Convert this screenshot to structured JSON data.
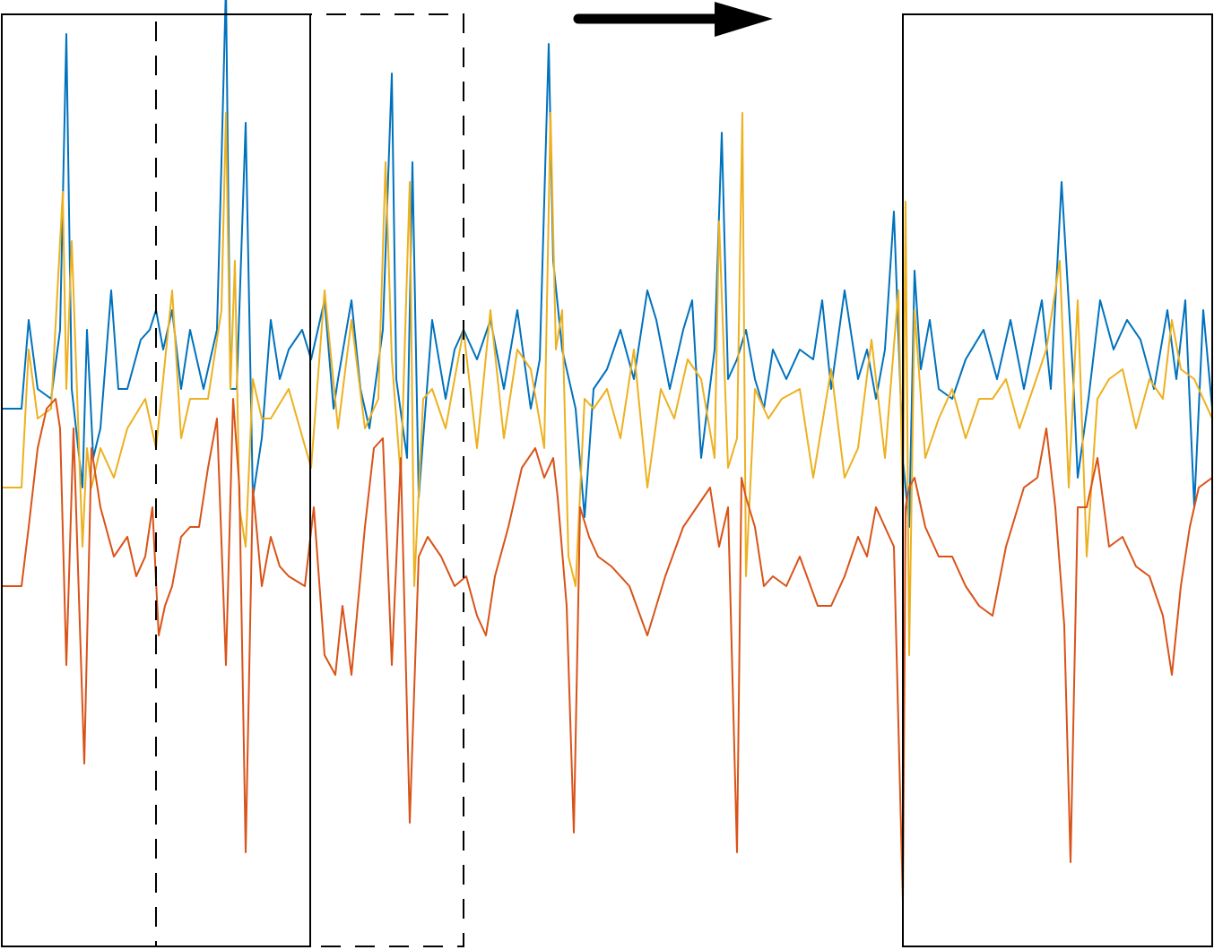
{
  "chart_data": {
    "type": "line",
    "title": "",
    "xlabel": "",
    "ylabel": "",
    "grid": false,
    "legend": "none",
    "annotations": {
      "arrow_direction": "right",
      "windows": [
        {
          "style": "solid",
          "x_range": [
            0,
            344
          ]
        },
        {
          "style": "dashed",
          "x_range": [
            172,
            515
          ]
        },
        {
          "style": "solid",
          "x_range": [
            1005,
            1350
          ]
        }
      ]
    },
    "series": [
      {
        "color": "#0072BD",
        "x": [
          0,
          22,
          30,
          40,
          55,
          65,
          72,
          78,
          90,
          95,
          102,
          110,
          122,
          130,
          140,
          155,
          165,
          172,
          180,
          190,
          200,
          210,
          225,
          240,
          245,
          250,
          255,
          262,
          272,
          280,
          290,
          300,
          310,
          320,
          335,
          345,
          360,
          370,
          375,
          390,
          400,
          410,
          425,
          435,
          440,
          452,
          458,
          465,
          480,
          495,
          505,
          515,
          530,
          545,
          560,
          575,
          590,
          600,
          610,
          615,
          625,
          640,
          650,
          660,
          675,
          690,
          705,
          720,
          730,
          745,
          760,
          770,
          780,
          795,
          803,
          810,
          820,
          830,
          840,
          850,
          860,
          875,
          890,
          905,
          915,
          925,
          940,
          955,
          965,
          975,
          985,
          995,
          1005,
          1012,
          1018,
          1025,
          1035,
          1045,
          1060,
          1075,
          1095,
          1110,
          1125,
          1140,
          1160,
          1170,
          1182,
          1195,
          1200,
          1212,
          1225,
          1240,
          1255,
          1270,
          1285,
          1300,
          1310,
          1320,
          1330,
          1340,
          1350
        ],
        "y": [
          0.0,
          0.0,
          0.9,
          0.2,
          0.1,
          0.8,
          3.8,
          0.2,
          -0.8,
          0.8,
          -0.5,
          -0.2,
          1.2,
          0.2,
          0.2,
          0.7,
          0.8,
          1.0,
          0.6,
          1.0,
          0.2,
          0.8,
          0.2,
          0.8,
          2.5,
          4.3,
          0.2,
          0.2,
          2.9,
          -0.9,
          -0.3,
          0.9,
          0.3,
          0.6,
          0.8,
          0.5,
          1.1,
          0.0,
          0.3,
          1.1,
          0.2,
          -0.2,
          0.8,
          3.4,
          0.3,
          -0.5,
          2.5,
          -0.9,
          0.9,
          0.1,
          0.6,
          0.8,
          0.5,
          0.9,
          0.2,
          1.0,
          0.0,
          0.5,
          3.7,
          1.5,
          0.6,
          0.0,
          -1.1,
          0.2,
          0.4,
          0.8,
          0.3,
          1.2,
          0.9,
          0.2,
          0.8,
          1.1,
          -0.5,
          0.6,
          2.8,
          0.3,
          0.5,
          0.8,
          0.3,
          0.0,
          0.6,
          0.3,
          0.6,
          0.5,
          1.1,
          0.2,
          1.2,
          0.3,
          0.6,
          0.1,
          0.6,
          2.0,
          -0.5,
          -1.2,
          1.4,
          0.4,
          0.9,
          0.2,
          0.1,
          0.5,
          0.8,
          0.3,
          0.9,
          0.2,
          1.1,
          0.2,
          2.3,
          0.3,
          -0.7,
          0.1,
          1.1,
          0.6,
          0.9,
          0.7,
          0.2,
          1.0,
          0.3,
          1.1,
          -1.0,
          1.0,
          0.0
        ]
      },
      {
        "color": "#EDB120",
        "x": [
          0,
          22,
          30,
          40,
          55,
          68,
          72,
          78,
          90,
          95,
          100,
          110,
          125,
          140,
          160,
          172,
          180,
          190,
          200,
          210,
          230,
          245,
          250,
          255,
          260,
          265,
          272,
          280,
          290,
          300,
          320,
          345,
          360,
          375,
          390,
          405,
          420,
          428,
          435,
          445,
          455,
          460,
          470,
          480,
          495,
          505,
          515,
          530,
          545,
          560,
          575,
          590,
          605,
          612,
          618,
          625,
          632,
          640,
          650,
          660,
          675,
          690,
          705,
          720,
          735,
          750,
          765,
          780,
          795,
          800,
          810,
          820,
          826,
          830,
          840,
          855,
          870,
          890,
          905,
          925,
          940,
          955,
          970,
          985,
          1000,
          1005,
          1008,
          1012,
          1018,
          1030,
          1045,
          1060,
          1075,
          1090,
          1105,
          1120,
          1135,
          1150,
          1165,
          1180,
          1190,
          1200,
          1210,
          1222,
          1235,
          1250,
          1265,
          1280,
          1295,
          1305,
          1315,
          1330,
          1350
        ],
        "y": [
          -0.8,
          -0.8,
          0.6,
          -0.1,
          0.0,
          2.2,
          0.2,
          1.7,
          -1.4,
          -0.4,
          -0.8,
          -0.4,
          -0.7,
          -0.2,
          0.1,
          -0.4,
          0.3,
          1.2,
          -0.3,
          0.1,
          0.1,
          1.0,
          3.0,
          0.2,
          1.5,
          -1.0,
          -1.4,
          0.3,
          -0.1,
          -0.1,
          0.2,
          -0.6,
          1.2,
          -0.2,
          0.9,
          -0.2,
          0.1,
          2.5,
          0.5,
          -0.7,
          2.3,
          -1.8,
          0.1,
          0.2,
          -0.2,
          0.3,
          0.8,
          -0.4,
          1.0,
          -0.3,
          0.6,
          0.4,
          -0.4,
          3.0,
          0.6,
          1.0,
          -1.5,
          -1.8,
          0.1,
          0.0,
          0.2,
          -0.3,
          0.6,
          -0.8,
          0.2,
          -0.1,
          0.5,
          0.3,
          -0.5,
          1.9,
          -0.6,
          -0.3,
          3.0,
          -1.7,
          0.2,
          -0.1,
          0.1,
          0.2,
          -0.7,
          0.4,
          -0.7,
          -0.4,
          0.7,
          -0.5,
          1.2,
          -1.0,
          2.1,
          -2.5,
          1.0,
          -0.5,
          -0.1,
          0.2,
          -0.3,
          0.1,
          0.1,
          0.3,
          -0.2,
          0.2,
          0.6,
          1.5,
          -0.8,
          1.1,
          -1.5,
          0.1,
          0.3,
          0.4,
          -0.2,
          0.3,
          0.1,
          0.9,
          0.4,
          0.3,
          -0.1
        ]
      },
      {
        "color": "#D95319",
        "x": [
          0,
          22,
          30,
          40,
          50,
          60,
          65,
          72,
          80,
          92,
          100,
          110,
          125,
          140,
          150,
          160,
          168,
          175,
          182,
          190,
          200,
          210,
          220,
          230,
          240,
          250,
          258,
          265,
          272,
          280,
          290,
          300,
          310,
          320,
          338,
          348,
          360,
          372,
          380,
          390,
          405,
          415,
          425,
          435,
          445,
          455,
          465,
          475,
          490,
          505,
          518,
          530,
          540,
          550,
          565,
          580,
          595,
          605,
          615,
          620,
          630,
          638,
          645,
          655,
          665,
          680,
          700,
          720,
          740,
          760,
          775,
          790,
          800,
          810,
          820,
          825,
          830,
          840,
          850,
          860,
          875,
          890,
          910,
          925,
          940,
          955,
          965,
          975,
          985,
          995,
          1005,
          1008,
          1012,
          1018,
          1030,
          1045,
          1060,
          1075,
          1090,
          1105,
          1120,
          1140,
          1155,
          1165,
          1175,
          1185,
          1192,
          1200,
          1210,
          1222,
          1235,
          1250,
          1265,
          1280,
          1295,
          1305,
          1315,
          1325,
          1335,
          1350
        ],
        "y": [
          -1.8,
          -1.8,
          -1.2,
          -0.4,
          0.0,
          0.1,
          -0.2,
          -2.6,
          -0.2,
          -3.6,
          -0.4,
          -1.0,
          -1.5,
          -1.3,
          -1.7,
          -1.5,
          -1.0,
          -2.3,
          -2.0,
          -1.8,
          -1.3,
          -1.2,
          -1.2,
          -0.6,
          -0.1,
          -2.6,
          0.1,
          -0.8,
          -4.5,
          -0.8,
          -1.8,
          -1.3,
          -1.6,
          -1.7,
          -1.8,
          -1.0,
          -2.5,
          -2.7,
          -2.0,
          -2.7,
          -1.2,
          -0.4,
          -0.3,
          -2.6,
          -0.5,
          -4.2,
          -1.5,
          -1.3,
          -1.5,
          -1.8,
          -1.7,
          -2.1,
          -2.3,
          -1.7,
          -1.2,
          -0.6,
          -0.4,
          -0.7,
          -0.5,
          -0.9,
          -2.0,
          -4.3,
          -1.0,
          -1.3,
          -1.5,
          -1.6,
          -1.8,
          -2.3,
          -1.7,
          -1.2,
          -1.0,
          -0.8,
          -1.4,
          -1.0,
          -4.5,
          -0.7,
          -0.9,
          -1.2,
          -1.8,
          -1.7,
          -1.8,
          -1.5,
          -2.0,
          -2.0,
          -1.7,
          -1.3,
          -1.5,
          -1.0,
          -1.2,
          -1.4,
          -5.0,
          -1.0,
          -0.8,
          -0.7,
          -1.2,
          -1.5,
          -1.5,
          -1.8,
          -2.0,
          -2.1,
          -1.4,
          -0.8,
          -0.7,
          -0.2,
          -1.0,
          -2.2,
          -4.6,
          -1.0,
          -1.0,
          -0.5,
          -1.4,
          -1.3,
          -1.6,
          -1.7,
          -2.1,
          -2.7,
          -1.8,
          -1.2,
          -0.8,
          -0.7
        ]
      }
    ]
  }
}
